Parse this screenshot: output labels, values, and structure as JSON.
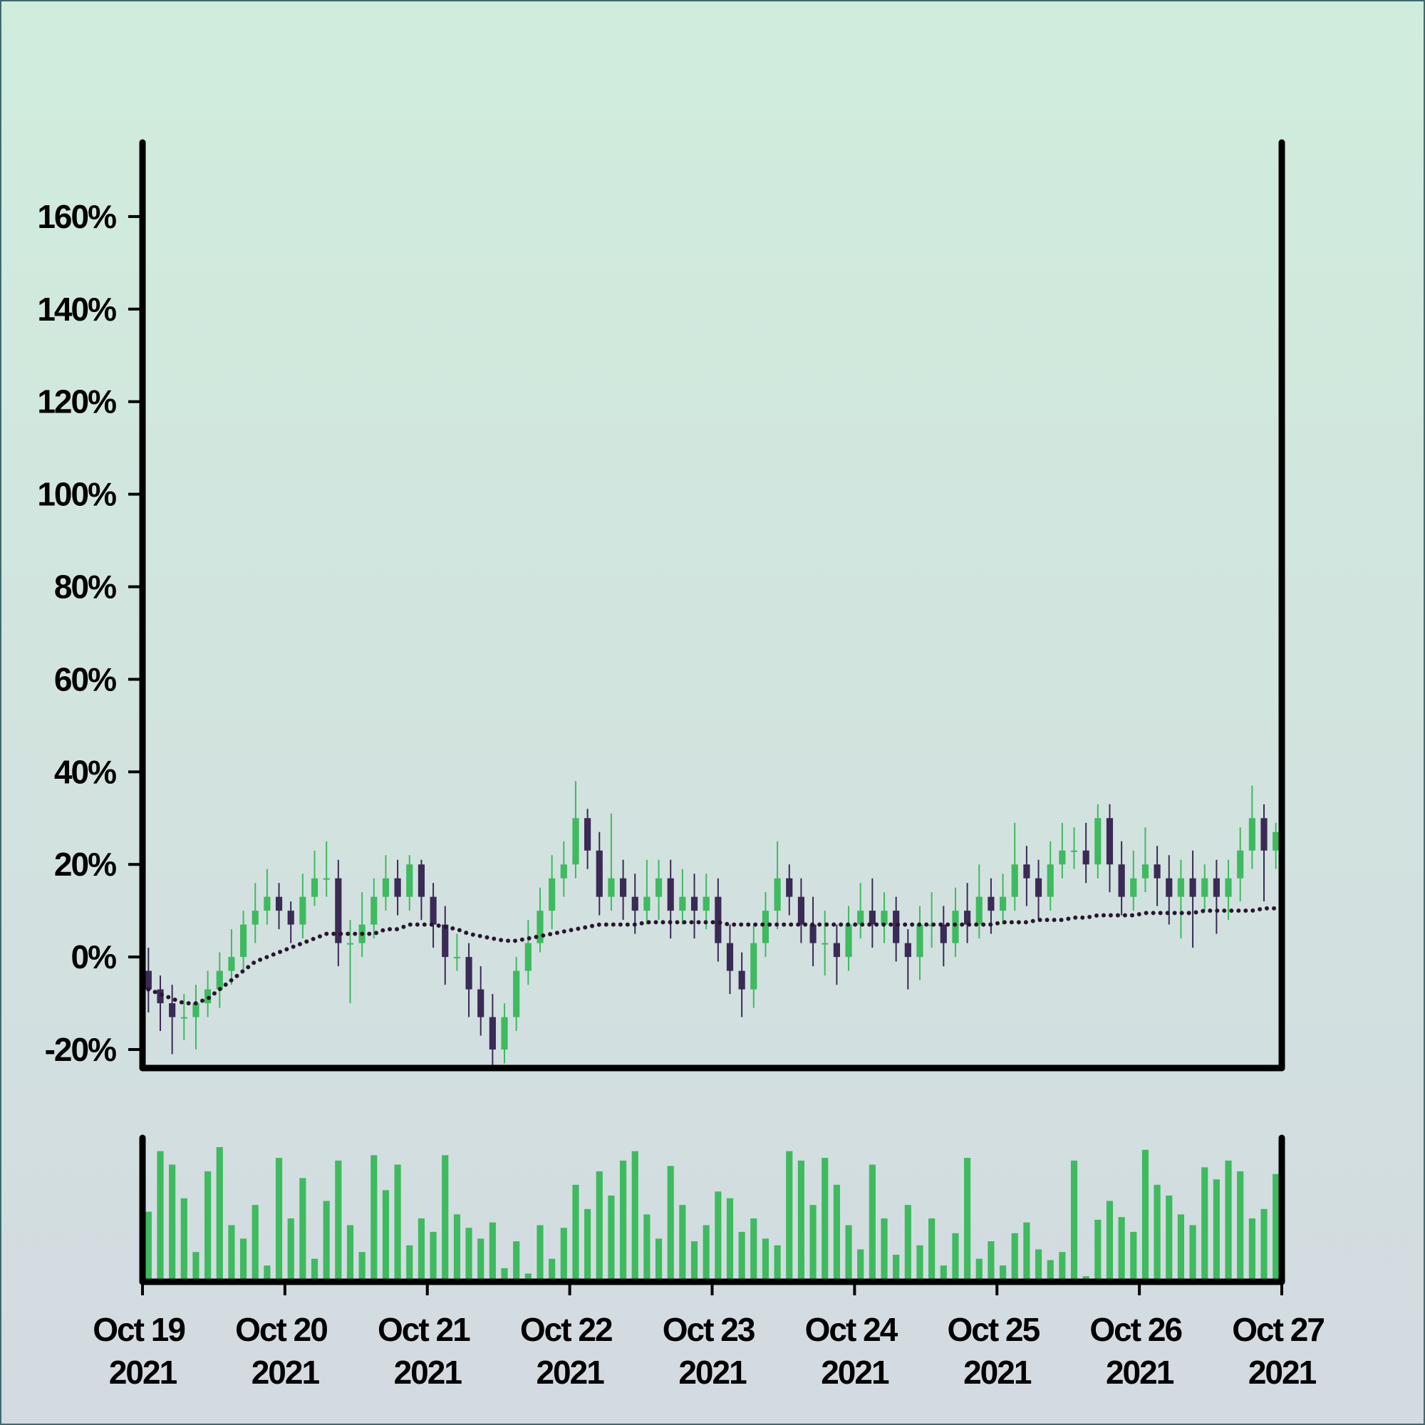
{
  "chart_data": {
    "type": "candlestick",
    "xlim": [
      0,
      192
    ],
    "x": [
      1,
      3,
      5,
      7,
      9,
      11,
      13,
      15,
      17,
      19,
      21,
      23,
      25,
      27,
      29,
      31,
      33,
      35,
      37,
      39,
      41,
      43,
      45,
      47,
      49,
      51,
      53,
      55,
      57,
      59,
      61,
      63,
      65,
      67,
      69,
      71,
      73,
      75,
      77,
      79,
      81,
      83,
      85,
      87,
      89,
      91,
      93,
      95,
      97,
      99,
      101,
      103,
      105,
      107,
      109,
      111,
      113,
      115,
      117,
      119,
      121,
      123,
      125,
      127,
      129,
      131,
      133,
      135,
      137,
      139,
      141,
      143,
      145,
      147,
      149,
      151,
      153,
      155,
      157,
      159,
      161,
      163,
      165,
      167,
      169,
      171,
      173,
      175,
      177,
      179,
      181,
      183,
      185,
      187,
      189,
      191
    ],
    "xticks": [
      {
        "value": 0,
        "label": "Oct 19 2021"
      },
      {
        "value": 24,
        "label": "Oct 20 2021"
      },
      {
        "value": 48,
        "label": "Oct 21 2021"
      },
      {
        "value": 72,
        "label": "Oct 22 2021"
      },
      {
        "value": 96,
        "label": "Oct 23 2021"
      },
      {
        "value": 120,
        "label": "Oct 24 2021"
      },
      {
        "value": 144,
        "label": "Oct 25 2021"
      },
      {
        "value": 168,
        "label": "Oct 26 2021"
      },
      {
        "value": 192,
        "label": "Oct 27 2021"
      }
    ],
    "ylim": [
      -24,
      176
    ],
    "yticks": [
      {
        "value": -20,
        "label": "-20%"
      },
      {
        "value": 0,
        "label": "0%"
      },
      {
        "value": 20,
        "label": "20%"
      },
      {
        "value": 40,
        "label": "40%"
      },
      {
        "value": 60,
        "label": "60%"
      },
      {
        "value": 80,
        "label": "80%"
      },
      {
        "value": 100,
        "label": "100%"
      },
      {
        "value": 120,
        "label": "120%"
      },
      {
        "value": 140,
        "label": "140%"
      },
      {
        "value": 160,
        "label": "160%"
      }
    ],
    "up_color": "#3dbb5e",
    "down_color": "#3a2a55",
    "ma_color": "#2a1530",
    "volume_color": "#3dbb5e",
    "open": [
      -3,
      -7,
      -10,
      -13,
      -13,
      -10,
      -7,
      -3,
      0,
      7,
      10,
      13,
      10,
      7,
      13,
      17,
      17,
      3,
      3,
      7,
      13,
      17,
      13,
      20,
      13,
      7,
      0,
      0,
      -7,
      -13,
      -20,
      -13,
      -3,
      3,
      10,
      17,
      20,
      30,
      23,
      13,
      17,
      13,
      10,
      13,
      17,
      10,
      13,
      10,
      13,
      3,
      -3,
      -7,
      3,
      10,
      17,
      13,
      7,
      3,
      3,
      0,
      7,
      10,
      7,
      10,
      3,
      0,
      7,
      7,
      3,
      10,
      7,
      13,
      10,
      13,
      20,
      17,
      13,
      20,
      23,
      23,
      20,
      30,
      20,
      13,
      17,
      20,
      17,
      13,
      17,
      13,
      17,
      13,
      17,
      23,
      30,
      23
    ],
    "high": [
      2,
      -4,
      -6,
      -8,
      -6,
      -3,
      1,
      6,
      10,
      16,
      19,
      16,
      12,
      18,
      23,
      25,
      21,
      8,
      14,
      17,
      22,
      21,
      22,
      21,
      16,
      11,
      5,
      3,
      -2,
      -8,
      -10,
      0,
      8,
      15,
      22,
      25,
      38,
      32,
      27,
      31,
      21,
      18,
      21,
      21,
      21,
      19,
      18,
      18,
      17,
      7,
      1,
      7,
      14,
      25,
      20,
      17,
      13,
      10,
      7,
      11,
      16,
      17,
      14,
      13,
      6,
      11,
      14,
      11,
      15,
      16,
      20,
      17,
      18,
      29,
      24,
      21,
      25,
      29,
      28,
      29,
      33,
      33,
      25,
      23,
      28,
      24,
      22,
      21,
      23,
      20,
      21,
      21,
      28,
      37,
      33,
      29
    ],
    "low": [
      -12,
      -16,
      -21,
      -18,
      -20,
      -13,
      -11,
      -6,
      -3,
      3,
      7,
      6,
      3,
      4,
      11,
      13,
      -2,
      -10,
      0,
      4,
      10,
      9,
      10,
      8,
      2,
      -6,
      -3,
      -13,
      -17,
      -24,
      -23,
      -16,
      -6,
      1,
      6,
      13,
      17,
      19,
      9,
      10,
      8,
      5,
      7,
      8,
      4,
      7,
      4,
      6,
      -1,
      -8,
      -13,
      -11,
      0,
      6,
      9,
      3,
      -2,
      -4,
      -6,
      -3,
      4,
      2,
      3,
      -1,
      -7,
      -5,
      2,
      -2,
      0,
      3,
      4,
      5,
      7,
      10,
      11,
      8,
      10,
      17,
      19,
      16,
      17,
      14,
      9,
      10,
      14,
      11,
      7,
      4,
      2,
      10,
      5,
      8,
      12,
      19,
      12,
      19
    ],
    "close": [
      -7,
      -10,
      -13,
      -13,
      -10,
      -7,
      -3,
      0,
      7,
      10,
      13,
      10,
      7,
      13,
      17,
      17,
      3,
      3,
      7,
      13,
      17,
      13,
      20,
      13,
      7,
      0,
      0,
      -7,
      -13,
      -20,
      -13,
      -3,
      3,
      10,
      17,
      20,
      30,
      23,
      13,
      17,
      13,
      10,
      13,
      17,
      10,
      13,
      10,
      13,
      3,
      -3,
      -7,
      3,
      10,
      17,
      13,
      7,
      3,
      3,
      0,
      7,
      10,
      7,
      10,
      3,
      0,
      7,
      7,
      3,
      10,
      7,
      13,
      10,
      13,
      20,
      17,
      13,
      20,
      23,
      23,
      20,
      30,
      20,
      13,
      17,
      20,
      17,
      13,
      17,
      13,
      17,
      13,
      17,
      23,
      30,
      23,
      27
    ],
    "ma": [
      -7,
      -8,
      -9,
      -10,
      -10,
      -9,
      -7,
      -5,
      -3,
      -1,
      0,
      1,
      2,
      3,
      4,
      5,
      5,
      5,
      5,
      5,
      6,
      6,
      7,
      7,
      7,
      6.5,
      6,
      5,
      4.5,
      4,
      3.5,
      3.5,
      4,
      4.5,
      5,
      5.5,
      6,
      6.5,
      7,
      7,
      7,
      7,
      7.5,
      7.5,
      7.5,
      7.5,
      7.5,
      7.5,
      7.5,
      7,
      7,
      7,
      7,
      7,
      7,
      7,
      7,
      7,
      7,
      7,
      7,
      7,
      7,
      7,
      7,
      7,
      7,
      7,
      7,
      7,
      7,
      7,
      7.5,
      7.5,
      7.5,
      8,
      8,
      8,
      8.5,
      8.5,
      9,
      9,
      9,
      9,
      9.5,
      9.5,
      9.5,
      9.5,
      9.5,
      10,
      10,
      10,
      10,
      10,
      10.5,
      10.5
    ],
    "volume": [
      50,
      95,
      85,
      60,
      20,
      80,
      98,
      40,
      30,
      55,
      10,
      90,
      45,
      75,
      15,
      58,
      88,
      40,
      20,
      92,
      66,
      85,
      25,
      45,
      35,
      92,
      48,
      38,
      30,
      42,
      8,
      28,
      4,
      40,
      15,
      38,
      70,
      52,
      80,
      62,
      88,
      95,
      48,
      30,
      84,
      55,
      28,
      40,
      65,
      60,
      35,
      45,
      30,
      25,
      95,
      88,
      55,
      90,
      70,
      40,
      22,
      85,
      45,
      18,
      55,
      25,
      45,
      10,
      34,
      90,
      15,
      28,
      10,
      34,
      42,
      22,
      14,
      20,
      88,
      2,
      44,
      58,
      46,
      35,
      96,
      70,
      62,
      48,
      40,
      83,
      74,
      88,
      80,
      45,
      52,
      78
    ]
  }
}
